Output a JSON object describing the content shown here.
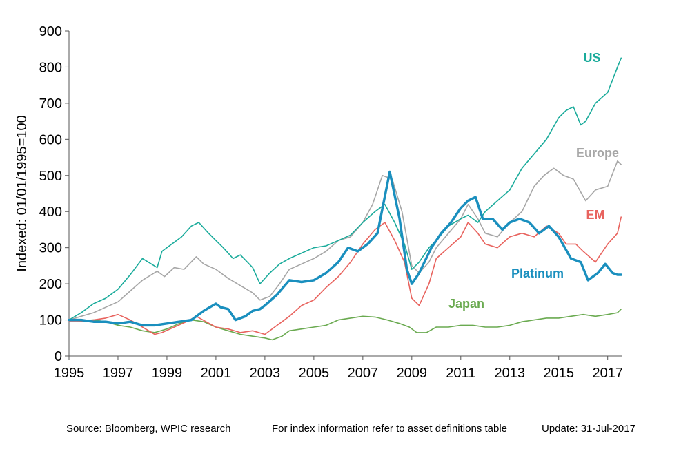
{
  "chart_data": {
    "type": "line",
    "ylabel": "Indexed: 01/01/1995=100",
    "xlabel": "",
    "xlim": [
      1995,
      2017.6
    ],
    "ylim": [
      0,
      900
    ],
    "x_ticks": [
      "1995",
      "1997",
      "1999",
      "2001",
      "2003",
      "2005",
      "2007",
      "2009",
      "2011",
      "2013",
      "2015",
      "2017"
    ],
    "y_ticks": [
      "0",
      "100",
      "200",
      "300",
      "400",
      "500",
      "600",
      "700",
      "800",
      "900"
    ],
    "grid": false,
    "series": [
      {
        "name": "US",
        "color": "#1aab9b",
        "width": 1.6,
        "x": [
          1995,
          1995.5,
          1996,
          1996.5,
          1997,
          1997.5,
          1998,
          1998.6,
          1998.8,
          1999.2,
          1999.6,
          2000,
          2000.3,
          2000.7,
          2001,
          2001.3,
          2001.7,
          2002,
          2002.5,
          2002.8,
          2003.2,
          2003.6,
          2004,
          2004.5,
          2005,
          2005.5,
          2006,
          2006.5,
          2007,
          2007.5,
          2007.9,
          2008.3,
          2008.7,
          2009.0,
          2009.3,
          2009.7,
          2010,
          2010.5,
          2011,
          2011.3,
          2011.7,
          2012,
          2012.5,
          2013,
          2013.5,
          2014,
          2014.5,
          2015,
          2015.3,
          2015.6,
          2015.9,
          2016.1,
          2016.5,
          2017,
          2017.4,
          2017.55
        ],
        "values": [
          100,
          120,
          145,
          160,
          185,
          225,
          270,
          245,
          290,
          310,
          330,
          360,
          370,
          340,
          320,
          300,
          270,
          280,
          245,
          200,
          230,
          255,
          270,
          285,
          300,
          305,
          320,
          335,
          370,
          400,
          420,
          370,
          310,
          240,
          260,
          300,
          320,
          360,
          380,
          390,
          370,
          400,
          430,
          460,
          520,
          560,
          600,
          660,
          680,
          690,
          640,
          650,
          700,
          730,
          800,
          825
        ]
      },
      {
        "name": "Europe",
        "color": "#a6a6a6",
        "width": 1.6,
        "x": [
          1995,
          1995.5,
          1996,
          1996.5,
          1997,
          1997.5,
          1998,
          1998.6,
          1998.9,
          1999.3,
          1999.7,
          2000.2,
          2000.5,
          2001,
          2001.5,
          2002,
          2002.5,
          2002.8,
          2003.2,
          2003.6,
          2004,
          2004.5,
          2005,
          2005.5,
          2006,
          2006.5,
          2007,
          2007.4,
          2007.8,
          2008.2,
          2008.6,
          2009.0,
          2009.3,
          2009.7,
          2010,
          2010.5,
          2011,
          2011.3,
          2011.7,
          2012,
          2012.5,
          2013,
          2013.5,
          2014,
          2014.4,
          2014.8,
          2015.2,
          2015.6,
          2016.1,
          2016.5,
          2017,
          2017.4,
          2017.55
        ],
        "values": [
          100,
          110,
          120,
          135,
          150,
          180,
          210,
          235,
          220,
          245,
          240,
          275,
          255,
          240,
          215,
          195,
          175,
          155,
          165,
          200,
          240,
          255,
          270,
          290,
          320,
          330,
          370,
          420,
          500,
          490,
          400,
          250,
          230,
          260,
          300,
          340,
          380,
          420,
          380,
          340,
          330,
          370,
          400,
          470,
          500,
          520,
          500,
          490,
          430,
          460,
          470,
          540,
          530
        ]
      },
      {
        "name": "EM",
        "color": "#e8635e",
        "width": 1.6,
        "x": [
          1995,
          1995.5,
          1996,
          1996.5,
          1997,
          1997.5,
          1998,
          1998.5,
          1998.8,
          1999.3,
          1999.8,
          2000.2,
          2000.6,
          2001,
          2001.5,
          2002,
          2002.5,
          2003,
          2003.5,
          2004,
          2004.5,
          2005,
          2005.5,
          2006,
          2006.5,
          2007,
          2007.5,
          2007.9,
          2008.3,
          2008.7,
          2009.0,
          2009.3,
          2009.7,
          2010,
          2010.5,
          2011,
          2011.3,
          2011.7,
          2012,
          2012.5,
          2013,
          2013.5,
          2014,
          2014.5,
          2015,
          2015.3,
          2015.7,
          2016,
          2016.5,
          2017,
          2017.4,
          2017.55
        ],
        "values": [
          95,
          95,
          100,
          105,
          115,
          100,
          80,
          60,
          65,
          80,
          95,
          110,
          95,
          80,
          75,
          65,
          70,
          60,
          85,
          110,
          140,
          155,
          190,
          220,
          260,
          310,
          350,
          370,
          320,
          260,
          160,
          140,
          200,
          270,
          300,
          330,
          370,
          340,
          310,
          300,
          330,
          340,
          330,
          360,
          340,
          310,
          310,
          290,
          260,
          310,
          340,
          385
        ]
      },
      {
        "name": "Platinum",
        "color": "#1a8fbe",
        "width": 3.5,
        "x": [
          1995,
          1995.5,
          1996,
          1996.5,
          1997,
          1997.5,
          1998,
          1998.5,
          1999,
          1999.5,
          2000,
          2000.5,
          2001,
          2001.2,
          2001.5,
          2001.8,
          2002.2,
          2002.5,
          2002.8,
          2003.0,
          2003.5,
          2004,
          2004.5,
          2005,
          2005.5,
          2006,
          2006.4,
          2006.8,
          2007.2,
          2007.6,
          2008.1,
          2008.5,
          2008.8,
          2009.0,
          2009.3,
          2009.8,
          2010.2,
          2010.6,
          2011,
          2011.3,
          2011.6,
          2011.9,
          2012.3,
          2012.7,
          2013.0,
          2013.4,
          2013.8,
          2014.2,
          2014.6,
          2015,
          2015.5,
          2015.9,
          2016.2,
          2016.6,
          2016.9,
          2017.2,
          2017.4,
          2017.55
        ],
        "values": [
          100,
          100,
          95,
          95,
          90,
          95,
          85,
          85,
          90,
          95,
          100,
          125,
          145,
          135,
          130,
          100,
          110,
          125,
          130,
          140,
          170,
          210,
          205,
          210,
          230,
          260,
          300,
          290,
          310,
          340,
          510,
          380,
          240,
          200,
          230,
          300,
          340,
          370,
          410,
          430,
          440,
          380,
          380,
          350,
          370,
          380,
          370,
          340,
          360,
          330,
          270,
          260,
          210,
          230,
          255,
          230,
          225,
          225
        ]
      },
      {
        "name": "Japan",
        "color": "#6aaa50",
        "width": 1.6,
        "x": [
          1995,
          1995.5,
          1996,
          1996.5,
          1997,
          1997.5,
          1998,
          1998.5,
          1999,
          1999.5,
          2000,
          2000.5,
          2001,
          2001.5,
          2002,
          2002.5,
          2003,
          2003.3,
          2003.7,
          2004,
          2004.5,
          2005,
          2005.5,
          2006,
          2006.5,
          2007,
          2007.5,
          2008,
          2008.5,
          2008.9,
          2009.2,
          2009.6,
          2010,
          2010.5,
          2011,
          2011.5,
          2012,
          2012.5,
          2013,
          2013.5,
          2014,
          2014.5,
          2015,
          2015.5,
          2016,
          2016.5,
          2017,
          2017.4,
          2017.55
        ],
        "values": [
          100,
          98,
          100,
          95,
          85,
          80,
          70,
          65,
          75,
          90,
          100,
          95,
          80,
          70,
          60,
          55,
          50,
          45,
          55,
          70,
          75,
          80,
          85,
          100,
          105,
          110,
          108,
          100,
          90,
          80,
          65,
          65,
          80,
          80,
          85,
          85,
          80,
          80,
          85,
          95,
          100,
          105,
          105,
          110,
          115,
          110,
          115,
          120,
          130
        ]
      }
    ],
    "annotations": [
      {
        "label": "US",
        "color": "#1aab9b"
      },
      {
        "label": "Europe",
        "color": "#a6a6a6"
      },
      {
        "label": "EM",
        "color": "#e8635e"
      },
      {
        "label": "Platinum",
        "color": "#1a8fbe"
      },
      {
        "label": "Japan",
        "color": "#6aaa50"
      }
    ]
  },
  "footer": {
    "source": "Source: Bloomberg, WPIC research",
    "index_info": "For index information refer to asset definitions table",
    "update": "Update: 31-Jul-2017"
  }
}
